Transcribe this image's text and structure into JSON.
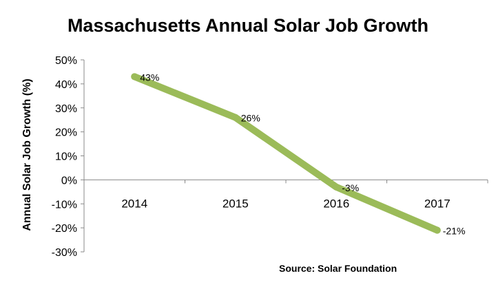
{
  "chart_data": {
    "type": "line",
    "title": "Massachusetts Annual Solar Job Growth",
    "xlabel": "",
    "ylabel": "Annual Solar Job Growth (%)",
    "source": "Source: Solar Foundation",
    "categories": [
      "2014",
      "2015",
      "2016",
      "2017"
    ],
    "series": [
      {
        "values": [
          43,
          26,
          -3,
          -21
        ],
        "labels": [
          "43%",
          "26%",
          "-3%",
          "-21%"
        ]
      }
    ],
    "ylim": [
      -30,
      50
    ],
    "yticks": [
      50,
      40,
      30,
      20,
      10,
      0,
      -10,
      -20,
      -30
    ],
    "yticklabels": [
      "50%",
      "40%",
      "30%",
      "20%",
      "10%",
      "0%",
      "-10%",
      "-20%",
      "-30%"
    ],
    "grid": false,
    "legend": "none",
    "line_color": "#9bbb59"
  }
}
